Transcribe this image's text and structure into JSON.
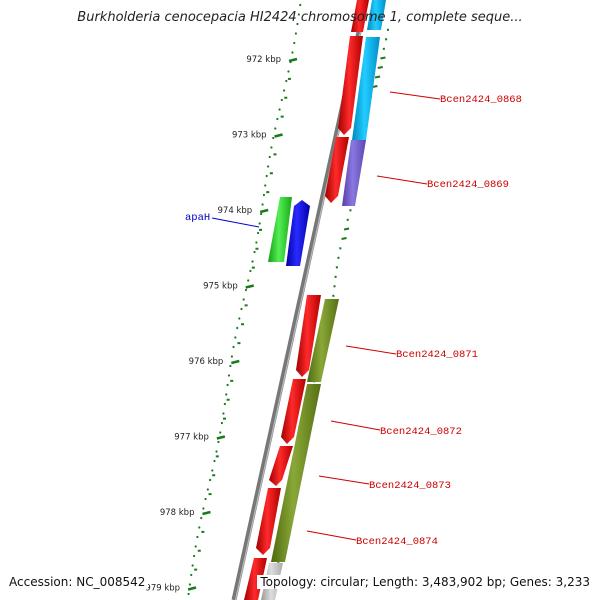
{
  "header": {
    "title": "Burkholderia cenocepacia HI2424 chromosome 1, complete seque..."
  },
  "footer": {
    "accession": "Accession: NC_008542",
    "stats": "Topology: circular; Length: 3,483,902 bp; Genes: 3,233"
  },
  "map": {
    "ruler_ticks": [
      {
        "label": "972 kbp",
        "kbp": 972
      },
      {
        "label": "973 kbp",
        "kbp": 973
      },
      {
        "label": "974 kbp",
        "kbp": 974
      },
      {
        "label": "975 kbp",
        "kbp": 975
      },
      {
        "label": "976 kbp",
        "kbp": 976
      },
      {
        "label": "977 kbp",
        "kbp": 977
      },
      {
        "label": "978 kbp",
        "kbp": 978
      },
      {
        "label": "979 kbp",
        "kbp": 979
      }
    ],
    "features": [
      {
        "name": "apaH",
        "color": "#0000cc",
        "label_color": "#0000cc"
      },
      {
        "name": "Bcen2424_0868",
        "color": "#cc0000",
        "label_color": "#cc0000"
      },
      {
        "name": "Bcen2424_0869",
        "color": "#cc0000",
        "label_color": "#cc0000"
      },
      {
        "name": "Bcen2424_0871",
        "color": "#cc0000",
        "label_color": "#cc0000"
      },
      {
        "name": "Bcen2424_0872",
        "color": "#cc0000",
        "label_color": "#cc0000"
      },
      {
        "name": "Bcen2424_0873",
        "color": "#cc0000",
        "label_color": "#cc0000"
      },
      {
        "name": "Bcen2424_0874",
        "color": "#cc0000",
        "label_color": "#cc0000"
      }
    ]
  }
}
